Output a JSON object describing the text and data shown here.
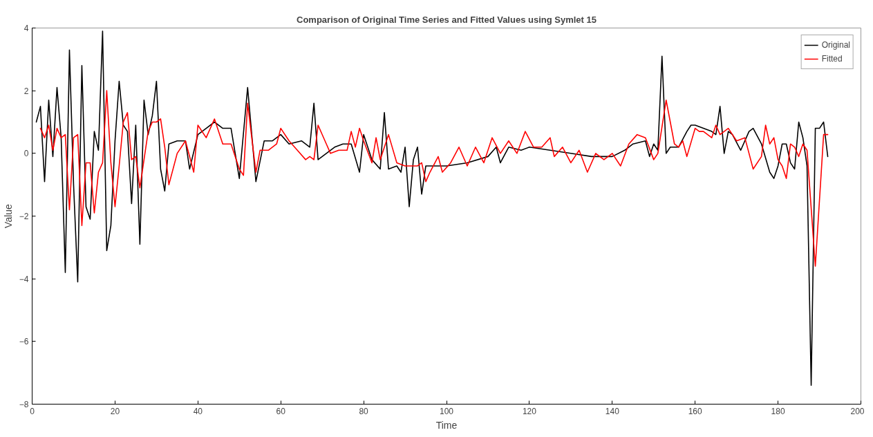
{
  "chart_data": {
    "type": "line",
    "title": "Comparison of Original Time Series and Fitted Values using Symlet 15",
    "xlabel": "Time",
    "ylabel": "Value",
    "xlim": [
      0,
      200
    ],
    "ylim": [
      -8,
      4
    ],
    "xticks": [
      0,
      20,
      40,
      60,
      80,
      100,
      120,
      140,
      160,
      180,
      200
    ],
    "yticks": [
      -8,
      -6,
      -4,
      -2,
      0,
      2,
      4
    ],
    "grid": false,
    "legend": "top right",
    "marker": "none",
    "line_style": "solid",
    "series": [
      {
        "name": "Original",
        "color": "#000000",
        "x": [
          1,
          2,
          3,
          4,
          5,
          6,
          7,
          8,
          9,
          10,
          11,
          12,
          13,
          14,
          15,
          16,
          17,
          18,
          19,
          20,
          21,
          22,
          23,
          24,
          25,
          26,
          27,
          28,
          29,
          30,
          31,
          32,
          33,
          35,
          37,
          38,
          40,
          42,
          44,
          46,
          48,
          50,
          52,
          54,
          56,
          58,
          60,
          62,
          65,
          67,
          68,
          69,
          71,
          73,
          75,
          77,
          79,
          80,
          82,
          84,
          85,
          86,
          88,
          89,
          90,
          91,
          92,
          93,
          94,
          95,
          97,
          100,
          105,
          110,
          112,
          113,
          115,
          118,
          120,
          125,
          130,
          135,
          140,
          143,
          145,
          148,
          149,
          150,
          151,
          152,
          153,
          154,
          156,
          158,
          159,
          160,
          162,
          164,
          165,
          166,
          167,
          168,
          169,
          171,
          173,
          174,
          176,
          178,
          179,
          180,
          181,
          182,
          183,
          184,
          185,
          186,
          187,
          188,
          189,
          190,
          191,
          192
        ],
        "values": [
          1.0,
          1.5,
          -0.9,
          1.7,
          -0.1,
          2.1,
          0.5,
          -3.8,
          3.3,
          -1.0,
          -4.1,
          2.8,
          -1.7,
          -2.1,
          0.7,
          0.1,
          3.9,
          -3.1,
          -2.3,
          0.4,
          2.3,
          0.9,
          0.7,
          -1.6,
          0.9,
          -2.9,
          1.7,
          0.6,
          1.2,
          2.3,
          -0.5,
          -1.2,
          0.3,
          0.4,
          0.4,
          -0.5,
          0.6,
          0.8,
          1.0,
          0.8,
          0.8,
          -0.8,
          2.1,
          -0.9,
          0.4,
          0.4,
          0.6,
          0.3,
          0.4,
          0.2,
          1.6,
          -0.2,
          0.0,
          0.2,
          0.3,
          0.3,
          -0.6,
          0.6,
          -0.2,
          -0.5,
          1.3,
          -0.5,
          -0.4,
          -0.6,
          0.2,
          -1.7,
          -0.2,
          0.2,
          -1.3,
          -0.4,
          -0.4,
          -0.4,
          -0.3,
          -0.1,
          0.2,
          -0.3,
          0.2,
          0.1,
          0.2,
          0.1,
          0.0,
          -0.1,
          -0.1,
          0.1,
          0.3,
          0.4,
          -0.1,
          0.3,
          0.1,
          3.1,
          0.0,
          0.2,
          0.2,
          0.7,
          0.9,
          0.9,
          0.8,
          0.7,
          0.6,
          1.5,
          0.0,
          0.7,
          0.6,
          0.1,
          0.7,
          0.8,
          0.3,
          -0.6,
          -0.8,
          -0.4,
          0.3,
          0.3,
          -0.3,
          -0.5,
          1.0,
          0.5,
          -0.4,
          -7.4,
          0.8,
          0.8,
          1.0,
          -0.1
        ]
      },
      {
        "name": "Fitted",
        "color": "#ff0000",
        "x": [
          2,
          3,
          4,
          5,
          6,
          7,
          8,
          9,
          10,
          11,
          12,
          13,
          14,
          15,
          16,
          17,
          18,
          19,
          20,
          21,
          22,
          23,
          24,
          25,
          26,
          27,
          28,
          29,
          30,
          31,
          32,
          33,
          35,
          37,
          39,
          40,
          42,
          44,
          46,
          48,
          50,
          51,
          52,
          54,
          55,
          57,
          59,
          60,
          62,
          64,
          66,
          67,
          68,
          69,
          71,
          72,
          74,
          76,
          77,
          78,
          79,
          80,
          82,
          83,
          84,
          86,
          88,
          90,
          92,
          93,
          94,
          95,
          96,
          98,
          99,
          101,
          103,
          105,
          107,
          109,
          111,
          113,
          115,
          117,
          119,
          121,
          123,
          125,
          126,
          128,
          130,
          132,
          134,
          136,
          138,
          140,
          142,
          144,
          146,
          148,
          150,
          151,
          153,
          155,
          156,
          157,
          158,
          160,
          161,
          162,
          164,
          165,
          166,
          168,
          170,
          172,
          174,
          176,
          177,
          178,
          179,
          180,
          181,
          182,
          183,
          184,
          185,
          186,
          187,
          189,
          191,
          192
        ],
        "values": [
          0.8,
          0.5,
          0.9,
          0.1,
          0.8,
          0.5,
          0.6,
          -1.8,
          0.5,
          0.6,
          -2.3,
          -0.3,
          -0.3,
          -1.9,
          -0.6,
          -0.3,
          2.0,
          -0.3,
          -1.7,
          -0.4,
          1.0,
          1.3,
          -0.2,
          -0.1,
          -1.1,
          -0.2,
          0.7,
          1.0,
          1.0,
          1.1,
          0.2,
          -1.0,
          0.0,
          0.4,
          -0.6,
          0.9,
          0.5,
          1.1,
          0.3,
          0.3,
          -0.5,
          -0.7,
          1.6,
          -0.6,
          0.1,
          0.1,
          0.3,
          0.8,
          0.4,
          0.1,
          -0.2,
          -0.1,
          -0.2,
          0.9,
          0.3,
          0.0,
          0.1,
          0.1,
          0.7,
          0.2,
          0.8,
          0.4,
          -0.3,
          0.5,
          -0.2,
          0.6,
          -0.3,
          -0.4,
          -0.4,
          -0.4,
          -0.3,
          -0.9,
          -0.6,
          -0.1,
          -0.6,
          -0.3,
          0.2,
          -0.4,
          0.2,
          -0.3,
          0.5,
          0.0,
          0.4,
          0.0,
          0.7,
          0.2,
          0.2,
          0.5,
          -0.1,
          0.2,
          -0.3,
          0.1,
          -0.6,
          0.0,
          -0.2,
          0.0,
          -0.4,
          0.3,
          0.6,
          0.5,
          -0.2,
          0.0,
          1.7,
          0.3,
          0.2,
          0.4,
          -0.1,
          0.8,
          0.7,
          0.7,
          0.5,
          0.9,
          0.6,
          0.8,
          0.4,
          0.5,
          -0.5,
          -0.1,
          0.9,
          0.3,
          0.5,
          -0.2,
          -0.4,
          -0.8,
          0.3,
          0.2,
          -0.1,
          0.3,
          0.1,
          -3.6,
          0.6,
          0.6
        ]
      }
    ]
  }
}
